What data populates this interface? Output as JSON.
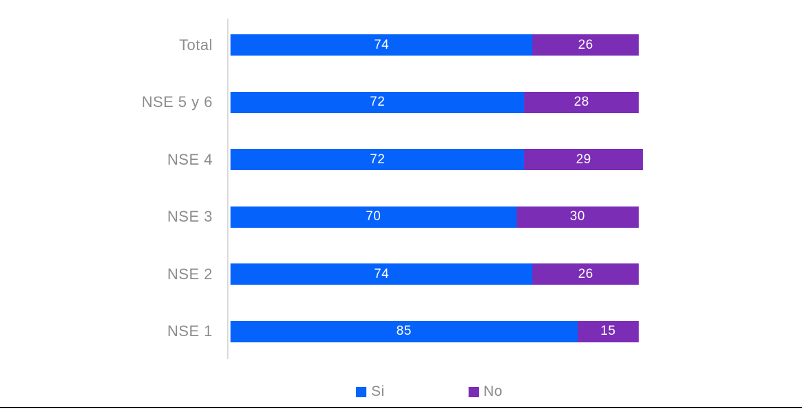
{
  "chart_data": {
    "type": "bar",
    "orientation": "horizontal",
    "stacked": true,
    "title": "",
    "xlabel": "",
    "ylabel": "",
    "xlim": [
      0,
      100
    ],
    "grid": false,
    "legend_position": "bottom",
    "categories": [
      "Total",
      "NSE 5 y 6",
      "NSE 4",
      "NSE 3",
      "NSE 2",
      "NSE 1"
    ],
    "series": [
      {
        "name": "Si",
        "color": "#0563fb",
        "values": [
          74,
          72,
          72,
          70,
          74,
          85
        ]
      },
      {
        "name": "No",
        "color": "#7b2db5",
        "values": [
          26,
          28,
          29,
          30,
          26,
          15
        ]
      }
    ],
    "value_labels": "inside-center",
    "value_label_color": "#ffffff",
    "category_label_color": "#8c8c8c",
    "axis_line_color": "#d9d9d9",
    "bottom_rule_color": "#000000"
  }
}
